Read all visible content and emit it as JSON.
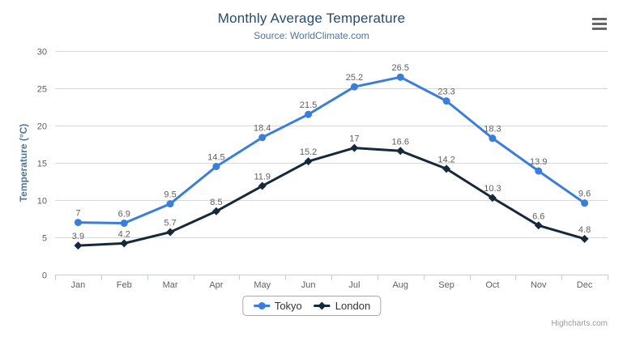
{
  "credits": {
    "label": "Highcharts.com"
  },
  "colors": {
    "title": "#274B6D",
    "subtitle": "#4D759E",
    "y_axis_title": "#4D759E",
    "axis_label": "#606060",
    "data_label": "#606060",
    "gridline": "#D8D8D8",
    "axis_line": "#C0D0E0",
    "legend_text": "#333333",
    "legend_border": "#A8A8A8",
    "credits_text": "#999999",
    "menu_icon": "#666666"
  },
  "chart_data": {
    "type": "line",
    "title": "Monthly Average Temperature",
    "subtitle": "Source: WorldClimate.com",
    "xlabel": "",
    "ylabel": "Temperature (°C)",
    "ylim": [
      0,
      30
    ],
    "ytick_step": 5,
    "grid": true,
    "legend_position": "bottom",
    "data_labels": true,
    "categories": [
      "Jan",
      "Feb",
      "Mar",
      "Apr",
      "May",
      "Jun",
      "Jul",
      "Aug",
      "Sep",
      "Oct",
      "Nov",
      "Dec"
    ],
    "series": [
      {
        "name": "Tokyo",
        "marker": "circle",
        "color": "#3B7DDB",
        "values": [
          7,
          6.9,
          9.5,
          14.5,
          18.4,
          21.5,
          25.2,
          26.5,
          23.3,
          18.3,
          13.9,
          9.6
        ]
      },
      {
        "name": "London",
        "marker": "diamond",
        "color": "#16293A",
        "values": [
          3.9,
          4.2,
          5.7,
          8.5,
          11.9,
          15.2,
          17,
          16.6,
          14.2,
          10.3,
          6.6,
          4.8
        ]
      }
    ]
  }
}
